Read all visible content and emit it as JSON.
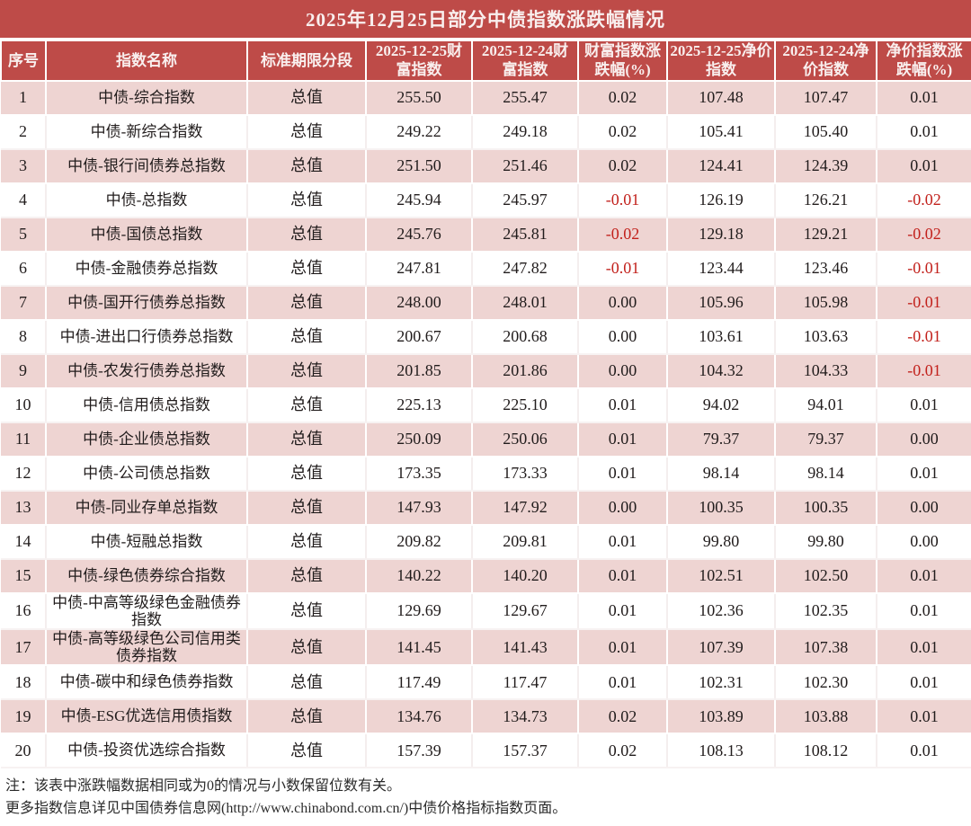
{
  "title": "2025年12月25日部分中债指数涨跌幅情况",
  "colors": {
    "header_red": "#be4b48",
    "row_pink": "#eed4d2",
    "negative_red": "#c2211c",
    "header_text": "#f9efee",
    "body_text": "#211c1c"
  },
  "notes": [
    "注：该表中涨跌幅数据相同或为0的情况与小数保留位数有关。",
    "更多指数信息详见中国债券信息网(http://www.chinabond.com.cn/)中债价格指标指数页面。"
  ],
  "chart_data": {
    "type": "table",
    "title": "2025年12月25日部分中债指数涨跌幅情况",
    "columns": [
      "序号",
      "指数名称",
      "标准期限分段",
      "2025-12-25财富指数",
      "2025-12-24财富指数",
      "财富指数涨跌幅(%)",
      "2025-12-25净价指数",
      "2025-12-24净价指数",
      "净价指数涨跌幅(%)"
    ],
    "rows": [
      [
        "1",
        "中债-综合指数",
        "总值",
        "255.50",
        "255.47",
        "0.02",
        "107.48",
        "107.47",
        "0.01"
      ],
      [
        "2",
        "中债-新综合指数",
        "总值",
        "249.22",
        "249.18",
        "0.02",
        "105.41",
        "105.40",
        "0.01"
      ],
      [
        "3",
        "中债-银行间债券总指数",
        "总值",
        "251.50",
        "251.46",
        "0.02",
        "124.41",
        "124.39",
        "0.01"
      ],
      [
        "4",
        "中债-总指数",
        "总值",
        "245.94",
        "245.97",
        "-0.01",
        "126.19",
        "126.21",
        "-0.02"
      ],
      [
        "5",
        "中债-国债总指数",
        "总值",
        "245.76",
        "245.81",
        "-0.02",
        "129.18",
        "129.21",
        "-0.02"
      ],
      [
        "6",
        "中债-金融债券总指数",
        "总值",
        "247.81",
        "247.82",
        "-0.01",
        "123.44",
        "123.46",
        "-0.01"
      ],
      [
        "7",
        "中债-国开行债券总指数",
        "总值",
        "248.00",
        "248.01",
        "0.00",
        "105.96",
        "105.98",
        "-0.01"
      ],
      [
        "8",
        "中债-进出口行债券总指数",
        "总值",
        "200.67",
        "200.68",
        "0.00",
        "103.61",
        "103.63",
        "-0.01"
      ],
      [
        "9",
        "中债-农发行债券总指数",
        "总值",
        "201.85",
        "201.86",
        "0.00",
        "104.32",
        "104.33",
        "-0.01"
      ],
      [
        "10",
        "中债-信用债总指数",
        "总值",
        "225.13",
        "225.10",
        "0.01",
        "94.02",
        "94.01",
        "0.01"
      ],
      [
        "11",
        "中债-企业债总指数",
        "总值",
        "250.09",
        "250.06",
        "0.01",
        "79.37",
        "79.37",
        "0.00"
      ],
      [
        "12",
        "中债-公司债总指数",
        "总值",
        "173.35",
        "173.33",
        "0.01",
        "98.14",
        "98.14",
        "0.01"
      ],
      [
        "13",
        "中债-同业存单总指数",
        "总值",
        "147.93",
        "147.92",
        "0.00",
        "100.35",
        "100.35",
        "0.00"
      ],
      [
        "14",
        "中债-短融总指数",
        "总值",
        "209.82",
        "209.81",
        "0.01",
        "99.80",
        "99.80",
        "0.00"
      ],
      [
        "15",
        "中债-绿色债券综合指数",
        "总值",
        "140.22",
        "140.20",
        "0.01",
        "102.51",
        "102.50",
        "0.01"
      ],
      [
        "16",
        "中债-中高等级绿色金融债券指数",
        "总值",
        "129.69",
        "129.67",
        "0.01",
        "102.36",
        "102.35",
        "0.01"
      ],
      [
        "17",
        "中债-高等级绿色公司信用类债券指数",
        "总值",
        "141.45",
        "141.43",
        "0.01",
        "107.39",
        "107.38",
        "0.01"
      ],
      [
        "18",
        "中债-碳中和绿色债券指数",
        "总值",
        "117.49",
        "117.47",
        "0.01",
        "102.31",
        "102.30",
        "0.01"
      ],
      [
        "19",
        "中债-ESG优选信用债指数",
        "总值",
        "134.76",
        "134.73",
        "0.02",
        "103.89",
        "103.88",
        "0.01"
      ],
      [
        "20",
        "中债-投资优选综合指数",
        "总值",
        "157.39",
        "157.37",
        "0.02",
        "108.13",
        "108.12",
        "0.01"
      ]
    ]
  }
}
